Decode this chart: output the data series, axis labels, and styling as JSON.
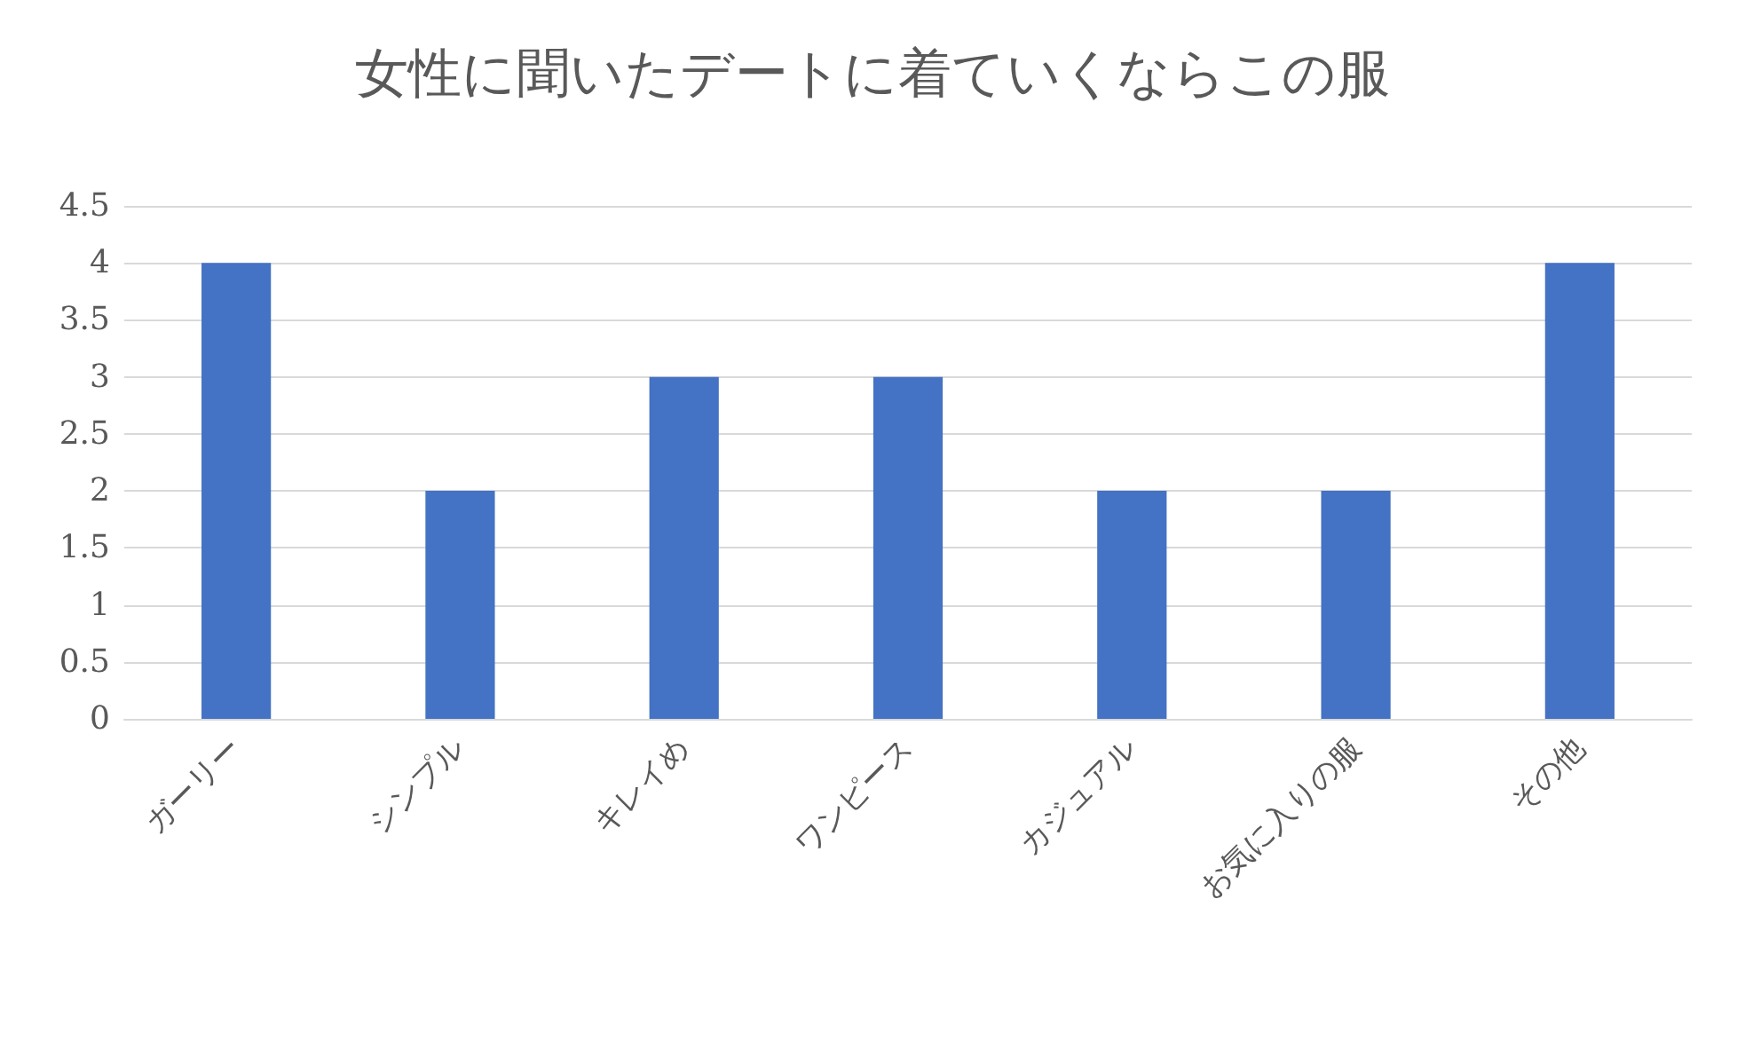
{
  "chart_data": {
    "type": "bar",
    "title": "女性に聞いたデートに着ていくならこの服",
    "categories": [
      "ガーリー",
      "シンプル",
      "キレイめ",
      "ワンピース",
      "カジュアル",
      "お気に入りの服",
      "その他"
    ],
    "values": [
      4,
      2,
      3,
      3,
      2,
      2,
      4
    ],
    "color": "#4472c4",
    "ylim": [
      0,
      4.5
    ],
    "yticks": [
      0,
      0.5,
      1,
      1.5,
      2,
      2.5,
      3,
      3.5,
      4,
      4.5
    ],
    "grid": "y"
  }
}
